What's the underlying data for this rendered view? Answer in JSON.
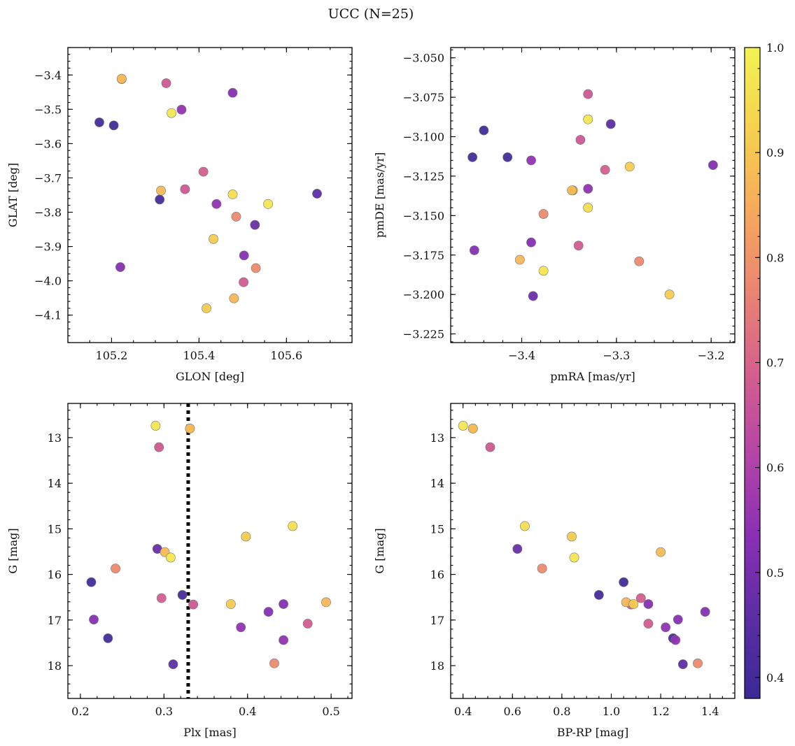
{
  "figure": {
    "title": "UCC (N=25)"
  },
  "colorbar": {
    "range": [
      0.38,
      1.0
    ],
    "ticks": [
      0.4,
      0.5,
      0.6,
      0.7,
      0.8,
      0.9,
      1.0
    ],
    "tick_labels": [
      "0.4",
      "0.5",
      "0.6",
      "0.7",
      "0.8",
      "0.9",
      "1.0"
    ],
    "colormap": "plasma",
    "colormap_stops": [
      "#3a2a95",
      "#5b2ea3",
      "#8a2fb3",
      "#b445a7",
      "#d45f8e",
      "#ea8473",
      "#f6a95b",
      "#f6d14e",
      "#f2f353"
    ]
  },
  "points": {
    "prob": [
      0.88,
      0.88,
      0.67,
      0.97,
      0.55,
      0.53,
      0.41,
      0.4,
      0.69,
      0.67,
      0.88,
      0.41,
      0.95,
      0.55,
      0.78,
      0.97,
      0.46,
      0.91,
      0.53,
      0.78,
      0.68,
      0.87,
      0.91,
      0.48,
      0.53
    ],
    "glon": [
      105.223,
      105.223,
      105.325,
      105.337,
      105.36,
      105.477,
      105.172,
      105.205,
      105.41,
      105.368,
      105.313,
      105.31,
      105.477,
      105.44,
      105.485,
      105.558,
      105.67,
      105.433,
      105.503,
      105.53,
      105.502,
      105.48,
      105.417,
      105.528,
      105.22
    ],
    "glat": [
      -3.412,
      -3.411,
      -3.424,
      -3.511,
      -3.501,
      -3.452,
      -3.538,
      -3.547,
      -3.682,
      -3.733,
      -3.737,
      -3.763,
      -3.748,
      -3.776,
      -3.813,
      -3.776,
      -3.746,
      -3.878,
      -3.926,
      -3.963,
      -4.004,
      -4.051,
      -4.08,
      -3.837,
      -3.96
    ],
    "pmra": [
      -3.346,
      -3.346,
      -3.33,
      -3.33,
      -3.39,
      -3.198,
      -3.452,
      -3.44,
      -3.312,
      -3.338,
      -3.347,
      -3.415,
      -3.33,
      -3.33,
      -3.377,
      -3.377,
      -3.306,
      -3.286,
      -3.39,
      -3.276,
      -3.34,
      -3.402,
      -3.244,
      -3.388,
      -3.45
    ],
    "pmde": [
      -3.134,
      -3.134,
      -3.073,
      -3.089,
      -3.115,
      -3.118,
      -3.113,
      -3.096,
      -3.121,
      -3.102,
      -3.134,
      -3.113,
      -3.145,
      -3.133,
      -3.149,
      -3.185,
      -3.092,
      -3.119,
      -3.167,
      -3.179,
      -3.169,
      -3.178,
      -3.2,
      -3.201,
      -3.172
    ],
    "plx": [
      0.331,
      0.331,
      0.294,
      0.29,
      0.392,
      0.443,
      0.233,
      0.213,
      0.297,
      0.335,
      0.301,
      0.322,
      0.454,
      0.443,
      0.242,
      0.308,
      0.311,
      0.38,
      0.425,
      0.432,
      0.472,
      0.494,
      0.398,
      0.292,
      0.216
    ],
    "g": [
      12.8,
      12.8,
      13.21,
      12.74,
      17.16,
      16.65,
      17.4,
      16.17,
      16.52,
      16.66,
      15.51,
      16.45,
      14.94,
      17.44,
      15.87,
      15.63,
      17.97,
      16.65,
      16.82,
      17.95,
      17.08,
      16.61,
      15.17,
      15.44,
      16.99
    ],
    "bprp": [
      0.44,
      0.44,
      0.51,
      0.4,
      1.22,
      1.15,
      1.25,
      1.05,
      1.12,
      1.08,
      1.2,
      0.95,
      0.65,
      1.26,
      0.72,
      0.85,
      1.29,
      1.09,
      1.38,
      1.35,
      1.15,
      1.06,
      0.84,
      0.62,
      1.27
    ]
  },
  "panels": [
    {
      "id": "glon-glat",
      "x_field": "glon",
      "y_field": "glat",
      "xlabel": "GLON [deg]",
      "ylabel": "GLAT [deg]",
      "xlim": [
        105.1,
        105.75
      ],
      "ylim": [
        -4.18,
        -3.32
      ],
      "invert_y": false,
      "xticks": [
        105.2,
        105.4,
        105.6
      ],
      "xtick_labels": [
        "105.2",
        "105.4",
        "105.6"
      ],
      "yticks": [
        -4.1,
        -4.0,
        -3.9,
        -3.8,
        -3.7,
        -3.6,
        -3.5,
        -3.4
      ],
      "ytick_labels": [
        "−4.1",
        "−4.0",
        "−3.9",
        "−3.8",
        "−3.7",
        "−3.6",
        "−3.5",
        "−3.4"
      ],
      "xminor": 0.05,
      "yminor": 0.02
    },
    {
      "id": "pmra-pmde",
      "x_field": "pmra",
      "y_field": "pmde",
      "xlabel": "pmRA [mas/yr]",
      "ylabel": "pmDE [mas/yr]",
      "xlim": [
        -3.475,
        -3.175
      ],
      "ylim": [
        -3.2305,
        -3.0435
      ],
      "invert_y": false,
      "xticks": [
        -3.4,
        -3.3,
        -3.2
      ],
      "xtick_labels": [
        "−3.4",
        "−3.3",
        "−3.2"
      ],
      "yticks": [
        -3.225,
        -3.2,
        -3.175,
        -3.15,
        -3.125,
        -3.1,
        -3.075,
        -3.05
      ],
      "ytick_labels": [
        "−3.225",
        "−3.200",
        "−3.175",
        "−3.150",
        "−3.125",
        "−3.100",
        "−3.075",
        "−3.050"
      ],
      "xminor": 0.02,
      "yminor": 0.005
    },
    {
      "id": "plx-g",
      "x_field": "plx",
      "y_field": "g",
      "xlabel": "Plx [mas]",
      "ylabel": "G [mag]",
      "xlim": [
        0.185,
        0.525
      ],
      "ylim": [
        12.25,
        18.72
      ],
      "invert_y": true,
      "xticks": [
        0.2,
        0.3,
        0.4,
        0.5
      ],
      "xtick_labels": [
        "0.2",
        "0.3",
        "0.4",
        "0.5"
      ],
      "yticks": [
        13,
        14,
        15,
        16,
        17,
        18
      ],
      "ytick_labels": [
        "13",
        "14",
        "15",
        "16",
        "17",
        "18"
      ],
      "xminor": 0.02,
      "yminor": 0.2,
      "vline": 0.329
    },
    {
      "id": "bprp-g",
      "x_field": "bprp",
      "y_field": "g",
      "xlabel": "BP-RP [mag]",
      "ylabel": "G [mag]",
      "xlim": [
        0.35,
        1.5
      ],
      "ylim": [
        12.25,
        18.72
      ],
      "invert_y": true,
      "xticks": [
        0.4,
        0.6,
        0.8,
        1.0,
        1.2,
        1.4
      ],
      "xtick_labels": [
        "0.4",
        "0.6",
        "0.8",
        "1.0",
        "1.2",
        "1.4"
      ],
      "yticks": [
        13,
        14,
        15,
        16,
        17,
        18
      ],
      "ytick_labels": [
        "13",
        "14",
        "15",
        "16",
        "17",
        "18"
      ],
      "xminor": 0.05,
      "yminor": 0.2
    }
  ]
}
